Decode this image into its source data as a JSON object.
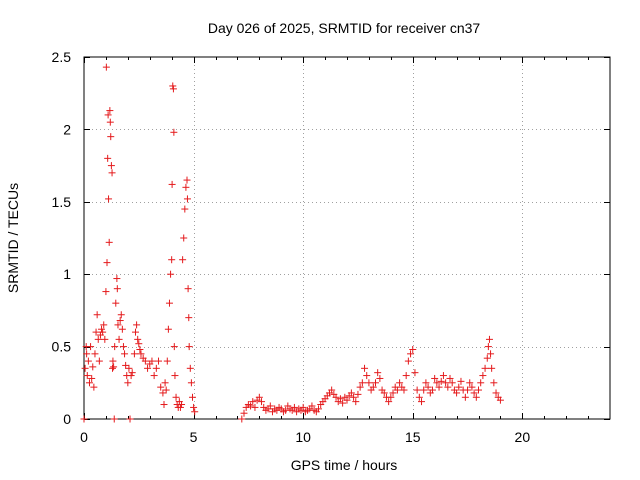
{
  "chart_data": {
    "type": "scatter",
    "title": "Day 026 of 2025, SRMTID for receiver cn37",
    "xlabel": "GPS time / hours",
    "ylabel": "SRMTID / TECUs",
    "xlim": [
      0,
      24
    ],
    "ylim": [
      0,
      2.5
    ],
    "xticks": [
      0,
      5,
      10,
      15,
      20
    ],
    "yticks": [
      0,
      0.5,
      1,
      1.5,
      2,
      2.5
    ],
    "xtick_labels": [
      "0",
      "5",
      "10",
      "15",
      "20"
    ],
    "ytick_labels": [
      "0",
      "0.5",
      "1",
      "1.5",
      "2",
      "2.5"
    ],
    "grid": true,
    "marker": "plus",
    "color": "#e41a1c",
    "series": [
      {
        "name": "SRMTID",
        "points": [
          [
            0.0,
            0.0
          ],
          [
            0.05,
            0.35
          ],
          [
            0.1,
            0.5
          ],
          [
            0.12,
            0.45
          ],
          [
            0.15,
            0.3
          ],
          [
            0.2,
            0.4
          ],
          [
            0.25,
            0.25
          ],
          [
            0.3,
            0.5
          ],
          [
            0.35,
            0.28
          ],
          [
            0.4,
            0.36
          ],
          [
            0.45,
            0.22
          ],
          [
            0.5,
            0.45
          ],
          [
            0.55,
            0.6
          ],
          [
            0.6,
            0.72
          ],
          [
            0.65,
            0.55
          ],
          [
            0.7,
            0.4
          ],
          [
            0.75,
            0.58
          ],
          [
            0.8,
            0.62
          ],
          [
            0.85,
            0.6
          ],
          [
            0.9,
            0.65
          ],
          [
            0.95,
            0.55
          ],
          [
            1.0,
            0.88
          ],
          [
            1.02,
            2.43
          ],
          [
            1.05,
            1.08
          ],
          [
            1.08,
            1.8
          ],
          [
            1.1,
            2.1
          ],
          [
            1.12,
            1.52
          ],
          [
            1.15,
            1.22
          ],
          [
            1.18,
            2.13
          ],
          [
            1.2,
            2.05
          ],
          [
            1.22,
            1.95
          ],
          [
            1.25,
            1.75
          ],
          [
            1.28,
            1.7
          ],
          [
            1.3,
            0.35
          ],
          [
            1.32,
            0.4
          ],
          [
            1.35,
            0.36
          ],
          [
            1.38,
            0.0
          ],
          [
            1.4,
            0.5
          ],
          [
            1.45,
            0.8
          ],
          [
            1.5,
            0.97
          ],
          [
            1.52,
            0.9
          ],
          [
            1.55,
            0.65
          ],
          [
            1.6,
            0.55
          ],
          [
            1.65,
            0.68
          ],
          [
            1.7,
            0.72
          ],
          [
            1.75,
            0.62
          ],
          [
            1.8,
            0.5
          ],
          [
            1.85,
            0.45
          ],
          [
            1.9,
            0.37
          ],
          [
            1.95,
            0.3
          ],
          [
            2.0,
            0.25
          ],
          [
            2.05,
            0.35
          ],
          [
            2.1,
            0.0
          ],
          [
            2.15,
            0.3
          ],
          [
            2.2,
            0.32
          ],
          [
            2.3,
            0.45
          ],
          [
            2.35,
            0.6
          ],
          [
            2.4,
            0.65
          ],
          [
            2.45,
            0.55
          ],
          [
            2.5,
            0.52
          ],
          [
            2.55,
            0.48
          ],
          [
            2.6,
            0.45
          ],
          [
            2.7,
            0.42
          ],
          [
            2.8,
            0.4
          ],
          [
            2.9,
            0.35
          ],
          [
            3.0,
            0.38
          ],
          [
            3.1,
            0.4
          ],
          [
            3.2,
            0.3
          ],
          [
            3.3,
            0.35
          ],
          [
            3.4,
            0.4
          ],
          [
            3.5,
            0.22
          ],
          [
            3.6,
            0.18
          ],
          [
            3.65,
            0.1
          ],
          [
            3.7,
            0.25
          ],
          [
            3.75,
            0.2
          ],
          [
            3.8,
            0.4
          ],
          [
            3.85,
            0.62
          ],
          [
            3.9,
            0.8
          ],
          [
            3.95,
            1.0
          ],
          [
            4.0,
            1.1
          ],
          [
            4.02,
            1.62
          ],
          [
            4.05,
            2.3
          ],
          [
            4.08,
            2.28
          ],
          [
            4.1,
            1.98
          ],
          [
            4.12,
            0.5
          ],
          [
            4.15,
            0.3
          ],
          [
            4.2,
            0.15
          ],
          [
            4.25,
            0.1
          ],
          [
            4.3,
            0.08
          ],
          [
            4.35,
            0.12
          ],
          [
            4.4,
            0.08
          ],
          [
            4.45,
            0.1
          ],
          [
            4.5,
            1.1
          ],
          [
            4.55,
            1.25
          ],
          [
            4.6,
            1.45
          ],
          [
            4.65,
            1.6
          ],
          [
            4.7,
            1.65
          ],
          [
            4.72,
            1.52
          ],
          [
            4.75,
            0.9
          ],
          [
            4.78,
            0.7
          ],
          [
            4.8,
            0.5
          ],
          [
            4.85,
            0.35
          ],
          [
            4.9,
            0.25
          ],
          [
            4.95,
            0.15
          ],
          [
            5.0,
            0.08
          ],
          [
            5.05,
            0.05
          ],
          [
            7.2,
            0.0
          ],
          [
            7.3,
            0.04
          ],
          [
            7.4,
            0.08
          ],
          [
            7.5,
            0.1
          ],
          [
            7.6,
            0.09
          ],
          [
            7.7,
            0.12
          ],
          [
            7.8,
            0.08
          ],
          [
            7.9,
            0.13
          ],
          [
            8.0,
            0.15
          ],
          [
            8.1,
            0.12
          ],
          [
            8.2,
            0.08
          ],
          [
            8.3,
            0.06
          ],
          [
            8.4,
            0.07
          ],
          [
            8.5,
            0.09
          ],
          [
            8.6,
            0.05
          ],
          [
            8.7,
            0.07
          ],
          [
            8.8,
            0.06
          ],
          [
            8.9,
            0.08
          ],
          [
            9.0,
            0.07
          ],
          [
            9.1,
            0.05
          ],
          [
            9.2,
            0.06
          ],
          [
            9.3,
            0.09
          ],
          [
            9.4,
            0.07
          ],
          [
            9.5,
            0.06
          ],
          [
            9.6,
            0.08
          ],
          [
            9.7,
            0.05
          ],
          [
            9.8,
            0.07
          ],
          [
            9.9,
            0.06
          ],
          [
            10.0,
            0.08
          ],
          [
            10.1,
            0.05
          ],
          [
            10.2,
            0.06
          ],
          [
            10.3,
            0.07
          ],
          [
            10.4,
            0.09
          ],
          [
            10.5,
            0.06
          ],
          [
            10.6,
            0.05
          ],
          [
            10.7,
            0.07
          ],
          [
            10.8,
            0.1
          ],
          [
            10.9,
            0.12
          ],
          [
            11.0,
            0.14
          ],
          [
            11.1,
            0.16
          ],
          [
            11.2,
            0.18
          ],
          [
            11.3,
            0.2
          ],
          [
            11.4,
            0.17
          ],
          [
            11.5,
            0.15
          ],
          [
            11.6,
            0.12
          ],
          [
            11.7,
            0.14
          ],
          [
            11.8,
            0.11
          ],
          [
            11.9,
            0.15
          ],
          [
            12.0,
            0.13
          ],
          [
            12.1,
            0.16
          ],
          [
            12.2,
            0.18
          ],
          [
            12.3,
            0.15
          ],
          [
            12.4,
            0.12
          ],
          [
            12.5,
            0.17
          ],
          [
            12.6,
            0.22
          ],
          [
            12.7,
            0.25
          ],
          [
            12.8,
            0.35
          ],
          [
            12.9,
            0.3
          ],
          [
            13.0,
            0.25
          ],
          [
            13.1,
            0.2
          ],
          [
            13.2,
            0.22
          ],
          [
            13.3,
            0.25
          ],
          [
            13.4,
            0.32
          ],
          [
            13.5,
            0.28
          ],
          [
            13.6,
            0.2
          ],
          [
            13.7,
            0.18
          ],
          [
            13.8,
            0.15
          ],
          [
            13.9,
            0.12
          ],
          [
            14.0,
            0.15
          ],
          [
            14.1,
            0.18
          ],
          [
            14.2,
            0.22
          ],
          [
            14.3,
            0.2
          ],
          [
            14.4,
            0.25
          ],
          [
            14.5,
            0.22
          ],
          [
            14.6,
            0.2
          ],
          [
            14.7,
            0.3
          ],
          [
            14.8,
            0.4
          ],
          [
            14.9,
            0.45
          ],
          [
            15.0,
            0.48
          ],
          [
            15.1,
            0.32
          ],
          [
            15.2,
            0.2
          ],
          [
            15.3,
            0.15
          ],
          [
            15.4,
            0.12
          ],
          [
            15.5,
            0.2
          ],
          [
            15.6,
            0.25
          ],
          [
            15.7,
            0.22
          ],
          [
            15.8,
            0.18
          ],
          [
            15.9,
            0.2
          ],
          [
            16.0,
            0.28
          ],
          [
            16.1,
            0.25
          ],
          [
            16.2,
            0.22
          ],
          [
            16.3,
            0.26
          ],
          [
            16.4,
            0.3
          ],
          [
            16.5,
            0.25
          ],
          [
            16.6,
            0.22
          ],
          [
            16.7,
            0.28
          ],
          [
            16.8,
            0.25
          ],
          [
            16.9,
            0.2
          ],
          [
            17.0,
            0.18
          ],
          [
            17.1,
            0.22
          ],
          [
            17.2,
            0.26
          ],
          [
            17.3,
            0.2
          ],
          [
            17.4,
            0.15
          ],
          [
            17.5,
            0.2
          ],
          [
            17.6,
            0.25
          ],
          [
            17.7,
            0.22
          ],
          [
            17.8,
            0.18
          ],
          [
            17.9,
            0.15
          ],
          [
            18.0,
            0.2
          ],
          [
            18.1,
            0.25
          ],
          [
            18.2,
            0.3
          ],
          [
            18.3,
            0.35
          ],
          [
            18.4,
            0.42
          ],
          [
            18.45,
            0.5
          ],
          [
            18.5,
            0.55
          ],
          [
            18.55,
            0.45
          ],
          [
            18.6,
            0.35
          ],
          [
            18.7,
            0.25
          ],
          [
            18.8,
            0.18
          ],
          [
            18.9,
            0.15
          ],
          [
            19.0,
            0.13
          ]
        ]
      }
    ]
  }
}
